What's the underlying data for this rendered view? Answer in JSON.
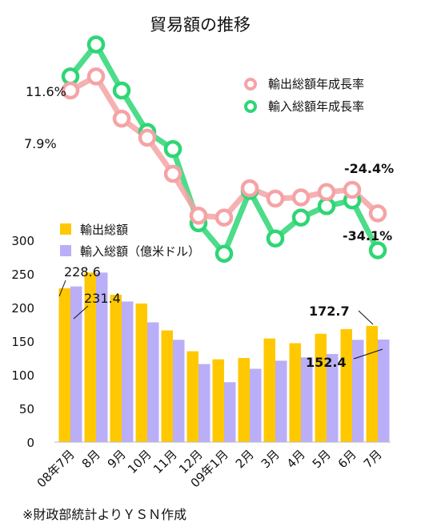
{
  "chart_data": {
    "type": "bar+line",
    "title": "貿易額の推移",
    "categories": [
      "08年7月",
      "8月",
      "9月",
      "10月",
      "11月",
      "12月",
      "09年1月",
      "2月",
      "3月",
      "4月",
      "5月",
      "6月",
      "7月"
    ],
    "bar_axis": {
      "ylim": [
        0,
        300
      ],
      "ticks": [
        0,
        50,
        100,
        150,
        200,
        250,
        300
      ]
    },
    "bar_series": [
      {
        "name": "輸出総額",
        "color": "#FFC800",
        "values": [
          228.6,
          252,
          219,
          206,
          166,
          135,
          123,
          125,
          154,
          147,
          161,
          168,
          172.7
        ]
      },
      {
        "name": "輸入総額（億米ドル）",
        "color": "#BBAEF8",
        "values": [
          231.4,
          252,
          209,
          178,
          152,
          116,
          89,
          109,
          121,
          126,
          131,
          152,
          152.4
        ]
      }
    ],
    "line_series": [
      {
        "name": "輸出総額年成長率",
        "color": "#F5A3A6",
        "values": [
          7.9,
          11.6,
          0.5,
          -4.5,
          -14.0,
          -25.0,
          -25.5,
          -17.8,
          -20.5,
          -20.2,
          -18.8,
          -18.2,
          -24.4
        ]
      },
      {
        "name": "輸入総額年成長率",
        "color": "#2ED675",
        "values": [
          11.6,
          20.0,
          7.9,
          -3.0,
          -7.5,
          -27.0,
          -35.0,
          -18.5,
          -31.0,
          -25.5,
          -22.5,
          -21.0,
          -34.1
        ]
      }
    ],
    "annotations": {
      "bar_first_export": "228.6",
      "bar_first_import": "231.4",
      "bar_last_export": "172.7",
      "bar_last_import": "152.4",
      "line_first_export": "7.9%",
      "line_first_import": "11.6%",
      "line_last_export": "-24.4%",
      "line_last_import": "-34.1%"
    },
    "footnote": "※財政部統計よりＹＳＮ作成"
  }
}
